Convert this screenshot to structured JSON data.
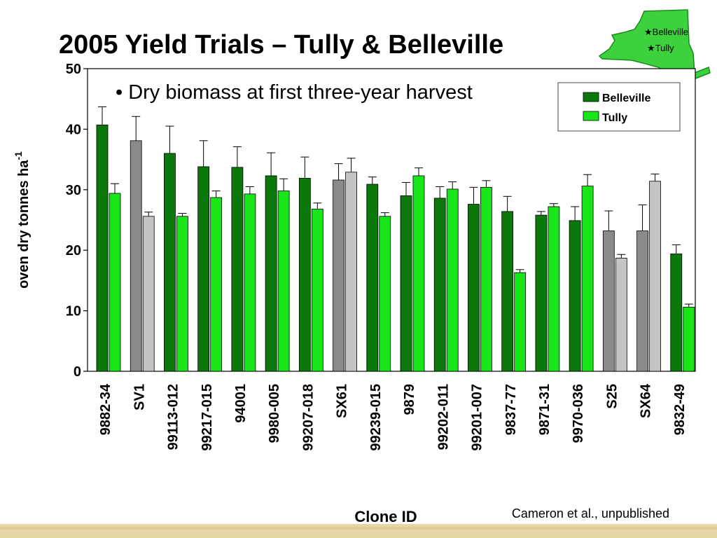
{
  "slide": {
    "title": "2005 Yield Trials – Tully & Belleville",
    "bullet": "• Dry biomass at first three-year harvest",
    "citation": "Cameron et al., unpublished",
    "map": {
      "icon": "new-york-state-map-icon",
      "labels": [
        "★Belleville",
        "★Tully"
      ]
    }
  },
  "chart_data": {
    "type": "bar",
    "title": "",
    "xlabel": "Clone ID",
    "ylabel": "oven dry tonnes ha",
    "ylabel_superscript": "-1",
    "ylim": [
      0,
      50
    ],
    "yticks": [
      0,
      10,
      20,
      30,
      40,
      50
    ],
    "grid": false,
    "legend_position": "top-right",
    "categories": [
      "9882-34",
      "SV1",
      "99113-012",
      "99217-015",
      "94001",
      "9980-005",
      "99207-018",
      "SX61",
      "99239-015",
      "9879",
      "99202-011",
      "99201-007",
      "9837-77",
      "9871-31",
      "9970-036",
      "S25",
      "SX64",
      "9832-49"
    ],
    "series": [
      {
        "name": "Belleville",
        "color": "#0a780a",
        "values": [
          40.7,
          38.1,
          36.0,
          33.8,
          33.7,
          32.3,
          31.9,
          31.6,
          30.9,
          29.0,
          28.6,
          27.6,
          26.4,
          25.8,
          24.9,
          23.2,
          23.2,
          19.4
        ],
        "errors": [
          3.0,
          4.0,
          4.5,
          4.3,
          3.4,
          3.8,
          3.5,
          2.7,
          1.2,
          2.2,
          1.9,
          2.8,
          2.5,
          0.6,
          2.3,
          3.3,
          4.3,
          1.5
        ]
      },
      {
        "name": "Tully",
        "color": "#19e619",
        "values": [
          29.4,
          25.6,
          25.6,
          28.7,
          29.3,
          29.8,
          26.8,
          32.9,
          25.6,
          32.3,
          30.1,
          30.4,
          16.3,
          27.2,
          30.6,
          18.7,
          31.4,
          10.6
        ],
        "errors": [
          1.6,
          0.7,
          0.5,
          1.1,
          1.2,
          2.0,
          1.0,
          2.3,
          0.6,
          1.3,
          1.2,
          1.1,
          0.5,
          0.5,
          1.9,
          0.6,
          1.2,
          0.5
        ]
      }
    ],
    "grey_categories": [
      "SV1",
      "SX61",
      "S25",
      "SX64"
    ],
    "grey_colors": {
      "Belleville": "#8a8a8a",
      "Tully": "#c4c4c4"
    }
  }
}
